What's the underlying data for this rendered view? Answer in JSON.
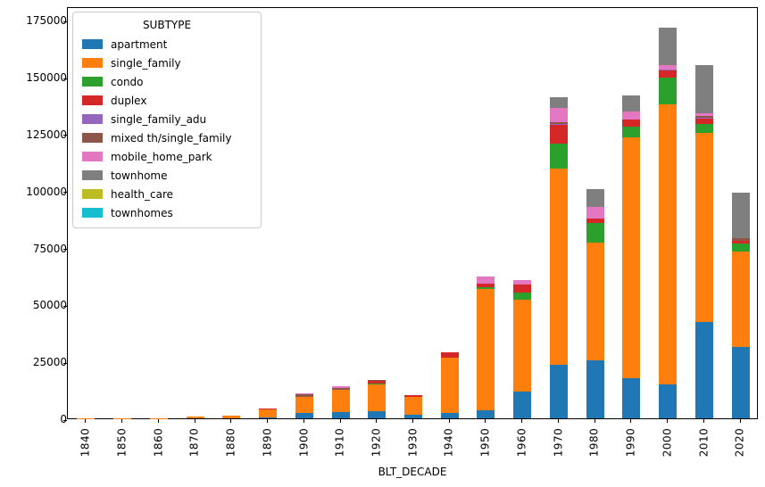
{
  "chart_data": {
    "type": "bar",
    "stacked": true,
    "title": "",
    "xlabel": "BLT_DECADE",
    "ylabel": "",
    "legend_title": "SUBTYPE",
    "legend_position": "upper left",
    "grid": false,
    "ylim": [
      0,
      181000
    ],
    "yticks": [
      0,
      25000,
      50000,
      75000,
      100000,
      125000,
      150000,
      175000
    ],
    "categories": [
      "1840",
      "1850",
      "1860",
      "1870",
      "1880",
      "1890",
      "1900",
      "1910",
      "1920",
      "1930",
      "1940",
      "1950",
      "1960",
      "1970",
      "1980",
      "1990",
      "2000",
      "2010",
      "2020"
    ],
    "series": [
      {
        "name": "apartment",
        "color": "#1f77b4",
        "values": [
          0,
          0,
          0,
          0,
          0,
          400,
          2500,
          2700,
          3300,
          1600,
          2500,
          3500,
          11700,
          23700,
          25300,
          17500,
          14700,
          42500,
          31200
        ]
      },
      {
        "name": "single_family",
        "color": "#ff7f0e",
        "values": [
          50,
          100,
          150,
          600,
          1300,
          3500,
          7100,
          9700,
          11500,
          7700,
          24000,
          53500,
          40500,
          86000,
          51900,
          106000,
          123300,
          82900,
          42000
        ]
      },
      {
        "name": "condo",
        "color": "#2ca02c",
        "values": [
          0,
          0,
          0,
          0,
          0,
          0,
          0,
          0,
          300,
          0,
          0,
          500,
          2900,
          11100,
          8500,
          4600,
          11700,
          3900,
          3500
        ]
      },
      {
        "name": "duplex",
        "color": "#d62728",
        "values": [
          0,
          0,
          0,
          0,
          0,
          300,
          0,
          0,
          1300,
          800,
          2500,
          1800,
          3600,
          8200,
          2000,
          3300,
          3000,
          2500,
          1300
        ]
      },
      {
        "name": "single_family_adu",
        "color": "#9467bd",
        "values": [
          0,
          0,
          0,
          0,
          0,
          0,
          0,
          0,
          0,
          0,
          0,
          0,
          0,
          500,
          0,
          0,
          400,
          300,
          0
        ]
      },
      {
        "name": "mixed th/single_family",
        "color": "#8c564b",
        "values": [
          0,
          0,
          0,
          0,
          0,
          0,
          800,
          900,
          400,
          0,
          0,
          0,
          0,
          400,
          0,
          0,
          0,
          800,
          1200
        ]
      },
      {
        "name": "mobile_home_park",
        "color": "#e377c2",
        "values": [
          0,
          0,
          0,
          0,
          0,
          0,
          700,
          800,
          0,
          0,
          0,
          3000,
          2200,
          6500,
          5200,
          3300,
          2000,
          1000,
          0
        ]
      },
      {
        "name": "townhome",
        "color": "#7f7f7f",
        "values": [
          0,
          0,
          0,
          0,
          0,
          0,
          0,
          0,
          0,
          0,
          0,
          0,
          0,
          4600,
          7800,
          7200,
          16700,
          21100,
          19800
        ]
      },
      {
        "name": "health_care",
        "color": "#bcbd22",
        "values": [
          0,
          0,
          0,
          0,
          0,
          0,
          0,
          0,
          0,
          0,
          0,
          0,
          0,
          0,
          0,
          0,
          0,
          0,
          0
        ]
      },
      {
        "name": "townhomes",
        "color": "#17becf",
        "values": [
          0,
          0,
          0,
          0,
          0,
          0,
          0,
          0,
          0,
          0,
          0,
          0,
          0,
          0,
          0,
          0,
          0,
          0,
          0
        ]
      }
    ]
  }
}
